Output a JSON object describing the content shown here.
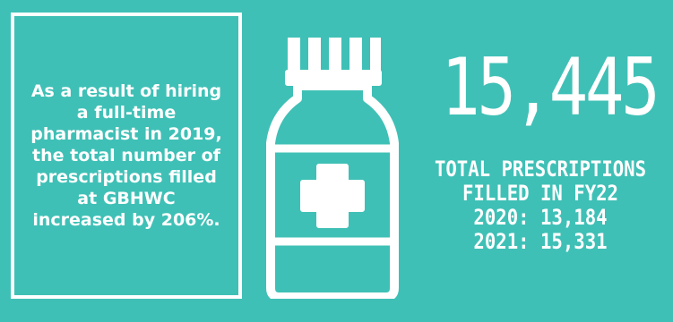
{
  "colors": {
    "background": "#3fc0b6",
    "foreground": "#ffffff"
  },
  "note": {
    "text": "As a result of hiring a full-time pharmacist in 2019, the total number of prescriptions filled at GBHWC increased by 206%."
  },
  "icon": {
    "name": "medicine-bottle-icon"
  },
  "stat": {
    "value": "15,445",
    "label_line1": "TOTAL PRESCRIPTIONS",
    "label_line2": "FILLED IN FY22",
    "year_2020": "2020: 13,184",
    "year_2021": "2021: 15,331"
  }
}
